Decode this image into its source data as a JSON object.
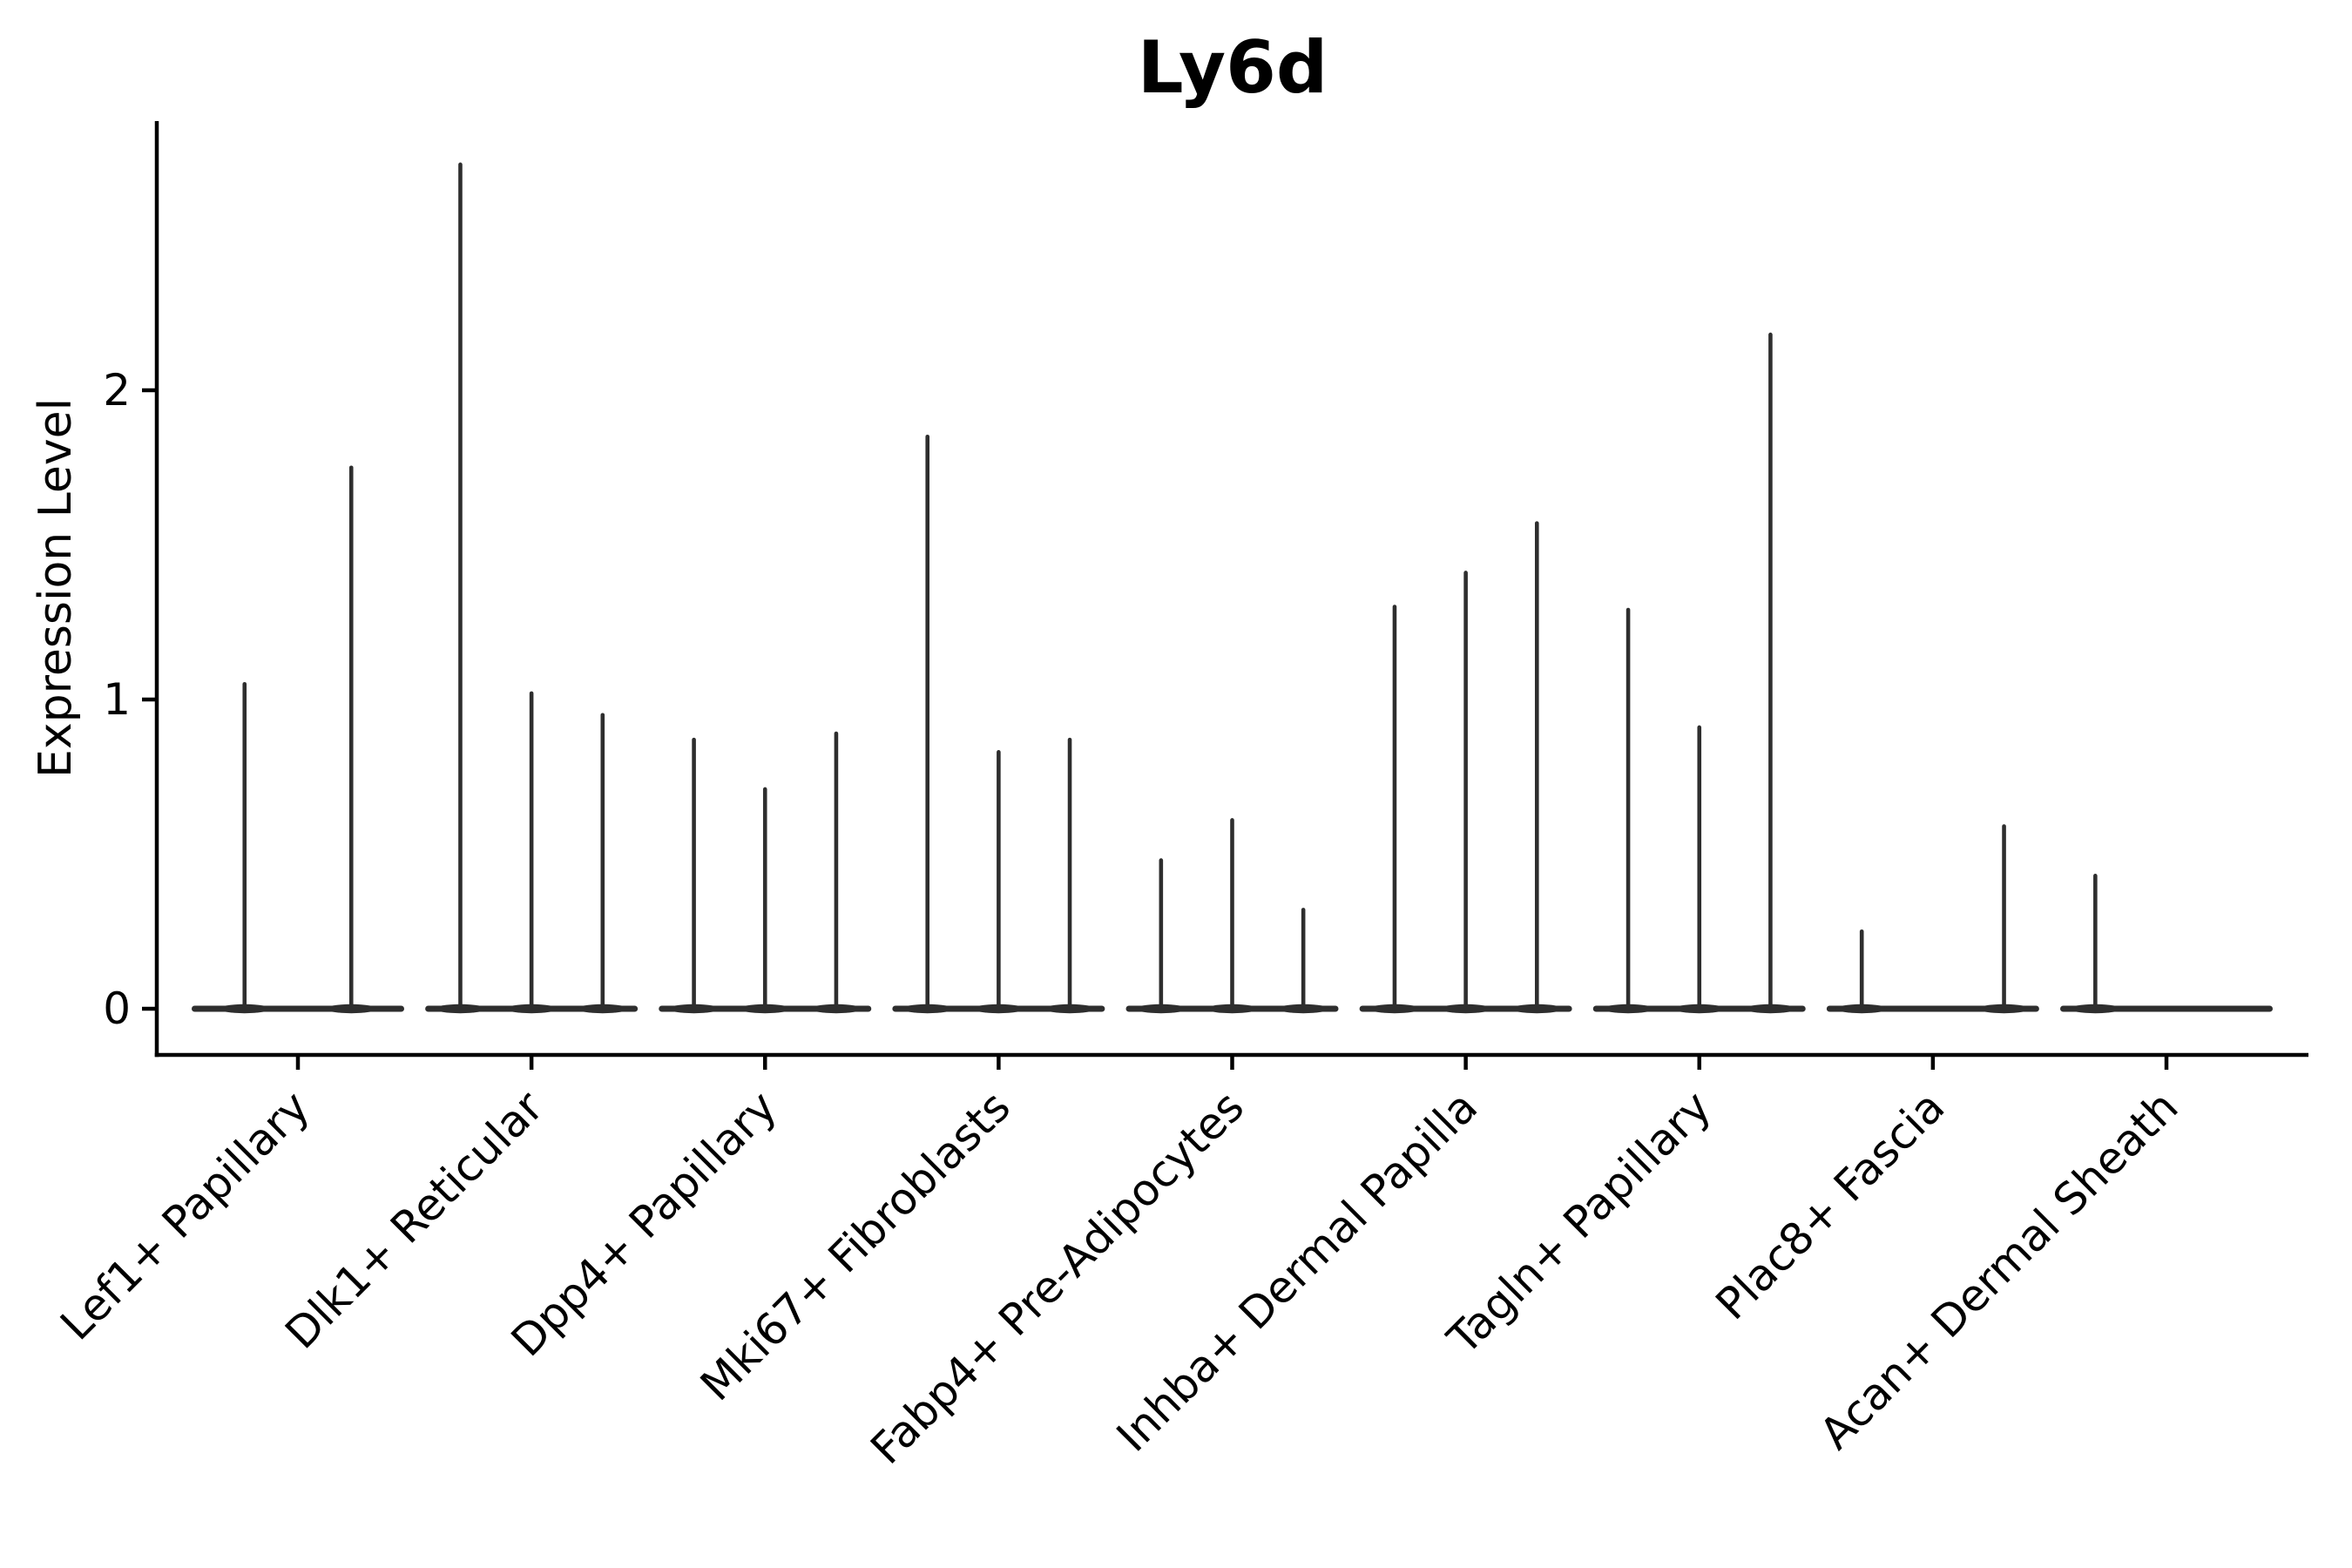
{
  "chart_data": {
    "type": "violin",
    "title": "Ly6d",
    "xlabel": "",
    "ylabel": "Expression Level",
    "yticks": [
      0,
      1,
      2
    ],
    "ylim": [
      0,
      2.9
    ],
    "grid": false,
    "legend": "none",
    "description": "Seurat-style stacked violin plot of Ly6d expression; each cluster shows very thin violins collapsed to a flat base at 0 with a narrow spike up to the maximum expression value.",
    "colors": {
      "violin": "#2e2e2e",
      "axis": "#000000",
      "text": "#000000",
      "background": "#ffffff"
    },
    "groups": [
      {
        "label": "Lef1+ Papillary",
        "n_violins": 2,
        "spikes": [
          {
            "slot": 0,
            "value": 1.05
          },
          {
            "slot": 1,
            "value": 1.75
          }
        ]
      },
      {
        "label": "Dlk1+ Reticular",
        "n_violins": 3,
        "spikes": [
          {
            "slot": 0,
            "value": 2.73
          },
          {
            "slot": 1,
            "value": 1.02
          },
          {
            "slot": 2,
            "value": 0.95
          }
        ]
      },
      {
        "label": "Dpp4+ Papillary",
        "n_violins": 3,
        "spikes": [
          {
            "slot": 0,
            "value": 0.87
          },
          {
            "slot": 1,
            "value": 0.71
          },
          {
            "slot": 2,
            "value": 0.89
          }
        ]
      },
      {
        "label": "Mki67+ Fibroblasts",
        "n_violins": 3,
        "spikes": [
          {
            "slot": 0,
            "value": 1.85
          },
          {
            "slot": 1,
            "value": 0.83
          },
          {
            "slot": 2,
            "value": 0.87
          }
        ]
      },
      {
        "label": "Fabp4+ Pre-Adipocytes",
        "n_violins": 3,
        "spikes": [
          {
            "slot": 0,
            "value": 0.48
          },
          {
            "slot": 1,
            "value": 0.61
          },
          {
            "slot": 2,
            "value": 0.32
          }
        ]
      },
      {
        "label": "Inhba+ Dermal Papilla",
        "n_violins": 3,
        "spikes": [
          {
            "slot": 0,
            "value": 1.3
          },
          {
            "slot": 1,
            "value": 1.41
          },
          {
            "slot": 2,
            "value": 1.57
          }
        ]
      },
      {
        "label": "Tagln+ Papillary",
        "n_violins": 3,
        "spikes": [
          {
            "slot": 0,
            "value": 1.29
          },
          {
            "slot": 1,
            "value": 0.91
          },
          {
            "slot": 2,
            "value": 2.18
          }
        ]
      },
      {
        "label": "Plac8+ Fascia",
        "n_violins": 3,
        "spikes": [
          {
            "slot": 0,
            "value": 0.25
          },
          {
            "slot": 2,
            "value": 0.59
          }
        ]
      },
      {
        "label": "Acan+ Dermal Sheath",
        "n_violins": 3,
        "spikes": [
          {
            "slot": 0,
            "value": 0.43
          }
        ]
      }
    ]
  }
}
